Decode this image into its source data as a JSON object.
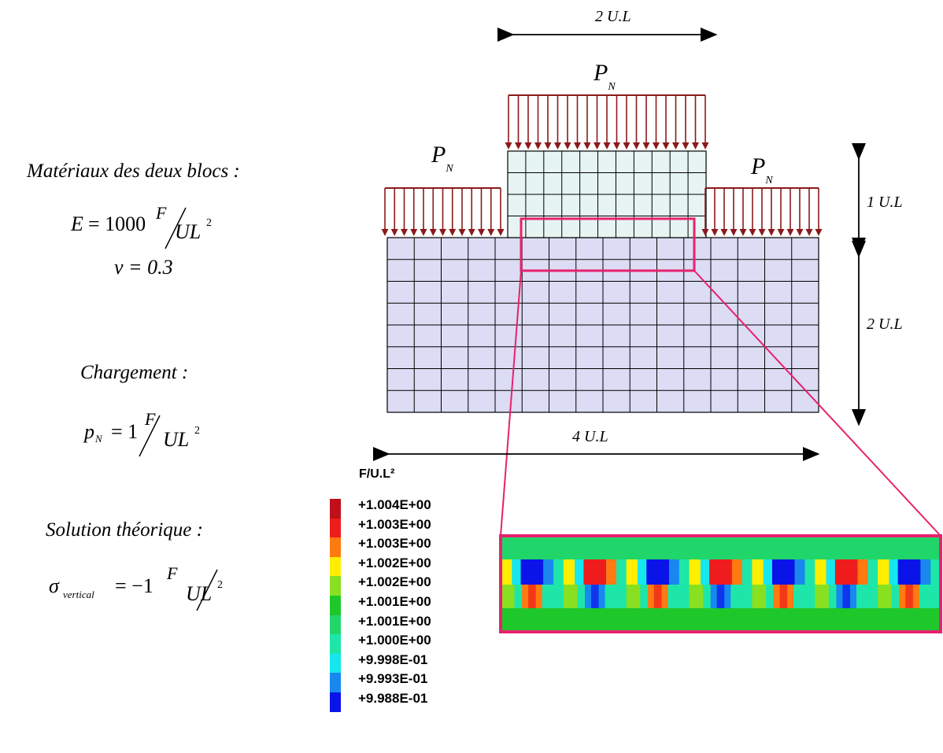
{
  "left_panel": {
    "material_heading": "Matériaux des deux blocs :",
    "E_lhs": "E",
    "E_value": "= 1000",
    "E_unit_num": "F",
    "E_unit_den": "UL",
    "E_unit_exp": "2",
    "nu": "ν = 0.3",
    "load_heading": "Chargement :",
    "p_lhs": "p",
    "p_sub": "N",
    "p_value": "= 1",
    "p_unit_num": "F",
    "p_unit_den": "UL",
    "p_unit_exp": "2",
    "solution_heading": "Solution théorique :",
    "sigma_lhs": "σ",
    "sigma_sub": "vertical",
    "sigma_value": "= −1",
    "sigma_unit_num": "F",
    "sigma_unit_den": "UL",
    "sigma_unit_exp": "2"
  },
  "diagram": {
    "dim_top": "2 U.L",
    "dim_bottom": "4 U.L",
    "dim_right_upper": "1 U.L",
    "dim_right_lower": "2 U.L",
    "load_label": "P",
    "load_sub": "N",
    "colors": {
      "mesh_fill": "#dcdcf4",
      "upper_block_fill": "#e6f4f2",
      "load_arrow": "#8b1a1a",
      "zoom_box": "#e8216e"
    }
  },
  "legend": {
    "unit": "F/U.L²",
    "entries": [
      {
        "label": "+1.004E+00",
        "color": "#c0101a"
      },
      {
        "label": "+1.003E+00",
        "color": "#ee1c1c"
      },
      {
        "label": "+1.003E+00",
        "color": "#ff7a10"
      },
      {
        "label": "+1.002E+00",
        "color": "#ffee00"
      },
      {
        "label": "+1.002E+00",
        "color": "#88e020"
      },
      {
        "label": "+1.001E+00",
        "color": "#1ec82a"
      },
      {
        "label": "+1.001E+00",
        "color": "#20d66a"
      },
      {
        "label": "+1.000E+00",
        "color": "#1ee6a8"
      },
      {
        "label": "+9.998E-01",
        "color": "#16e6ee"
      },
      {
        "label": "+9.993E-01",
        "color": "#1888ee"
      },
      {
        "label": "+9.988E-01",
        "color": "#0a14e8"
      }
    ]
  }
}
